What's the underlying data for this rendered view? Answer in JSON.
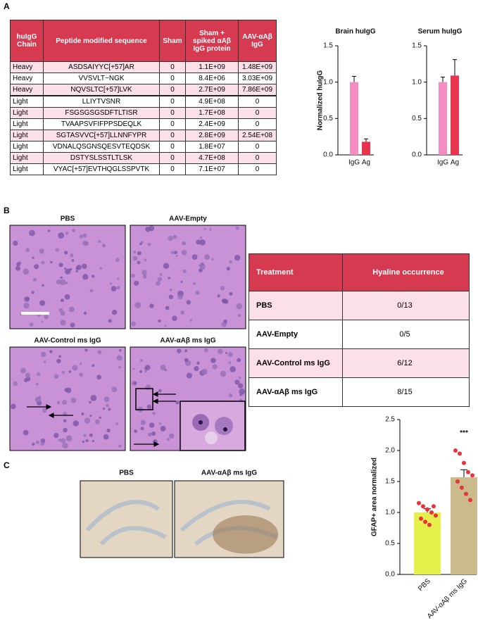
{
  "panel_labels": [
    "A",
    "B",
    "C"
  ],
  "table_a": {
    "header": [
      "huIgG Chain",
      "Peptide modified sequence",
      "Sham",
      "Sham + spiked αAβ IgG protein",
      "AAV-αAβ IgG"
    ],
    "rows": [
      [
        "Heavy",
        "ASDSAIYYC[+57]AR",
        "0",
        "1.1E+09",
        "1.48E+09"
      ],
      [
        "Heavy",
        "VVSVLT~NGK",
        "0",
        "8.4E+06",
        "3.03E+09"
      ],
      [
        "Heavy",
        "NQVSLTC[+57]LVK",
        "0",
        "2.7E+09",
        "7.86E+09"
      ],
      [
        "Light",
        "LLIYTVSNR",
        "0",
        "4.9E+08",
        "0"
      ],
      [
        "Light",
        "FSGSGSGSDFTLTISR",
        "0",
        "1.7E+08",
        "0"
      ],
      [
        "Light",
        "TVAAPSVFIFPPSDEQLK",
        "0",
        "2.4E+09",
        "0"
      ],
      [
        "Light",
        "SGTASVVC[+57]LLNNFYPR",
        "0",
        "2.8E+09",
        "2.54E+08"
      ],
      [
        "Light",
        "VDNALQSGNSQESVTEQDSK",
        "0",
        "1.8E+07",
        "0"
      ],
      [
        "Light",
        "DSTYSLSSTLTLSK",
        "0",
        "4.7E+08",
        "0"
      ],
      [
        "Light",
        "VYAC[+57]EVTHQGLSSPVTK",
        "0",
        "7.1E+07",
        "0"
      ]
    ]
  },
  "chart_data": [
    {
      "type": "bar",
      "title": "Brain huIgG",
      "y_label": "Normalized huIgG",
      "categories": [
        "IgG",
        "Ag"
      ],
      "values": [
        1.0,
        0.18
      ],
      "errors": [
        0.08,
        0.04
      ],
      "colors": [
        "#f58cc0",
        "#e8354f"
      ],
      "ylim": [
        0,
        1.5
      ],
      "yticks": [
        {
          "value": 0,
          "label": "0.0"
        },
        {
          "value": 0.5,
          "label": "0.5"
        },
        {
          "value": 1,
          "label": "1.0"
        },
        {
          "value": 1.5,
          "label": "1.5"
        }
      ]
    },
    {
      "type": "bar",
      "title": "Serum huIgG",
      "categories": [
        "IgG",
        "Ag"
      ],
      "values": [
        1.0,
        1.09
      ],
      "errors": [
        0.07,
        0.22
      ],
      "colors": [
        "#f58cc0",
        "#e8354f"
      ],
      "ylim": [
        0,
        1.5
      ],
      "yticks": [
        {
          "value": 0,
          "label": "0.0"
        },
        {
          "value": 0.5,
          "label": "0.5"
        },
        {
          "value": 1,
          "label": "1.0"
        },
        {
          "value": 1.5,
          "label": "1.5"
        }
      ]
    },
    {
      "type": "bar",
      "y_label": "GFAP+ area normalized",
      "categories": [
        "PBS",
        "AAV-αAβ ms IgG"
      ],
      "values": [
        1.0,
        1.57
      ],
      "errors": [
        0.06,
        0.12
      ],
      "colors": [
        "#e6f04c",
        "#cbbb8c"
      ],
      "points": [
        [
          1.15,
          1.1,
          1.05,
          1.0,
          0.95,
          0.9,
          0.85,
          0.8,
          1.1
        ],
        [
          2.0,
          1.95,
          1.8,
          1.65,
          1.6,
          1.5,
          1.4,
          1.3,
          1.2
        ]
      ],
      "point_color": "#e8323c",
      "annotation": "***",
      "ylim": [
        0,
        2.5
      ],
      "yticks": [
        {
          "value": 0,
          "label": "0.0"
        },
        {
          "value": 0.5,
          "label": "0.5"
        },
        {
          "value": 1,
          "label": "1.0"
        },
        {
          "value": 1.5,
          "label": "1.5"
        },
        {
          "value": 2,
          "label": "2.0"
        },
        {
          "value": 2.5,
          "label": "2.5"
        }
      ]
    }
  ],
  "panel_b": {
    "images": [
      "PBS",
      "AAV-Empty",
      "AAV-Control ms IgG",
      "AAV-αAβ ms IgG"
    ]
  },
  "table_b": {
    "header": [
      "Treatment",
      "Hyaline occurrence"
    ],
    "rows": [
      [
        "PBS",
        "0/13"
      ],
      [
        "AAV-Empty",
        "0/5"
      ],
      [
        "AAV-Control ms IgG",
        "6/12"
      ],
      [
        "AAV-αAβ ms IgG",
        "8/15"
      ]
    ]
  },
  "panel_c": {
    "images": [
      "PBS",
      "AAV-αAβ ms IgG"
    ]
  }
}
